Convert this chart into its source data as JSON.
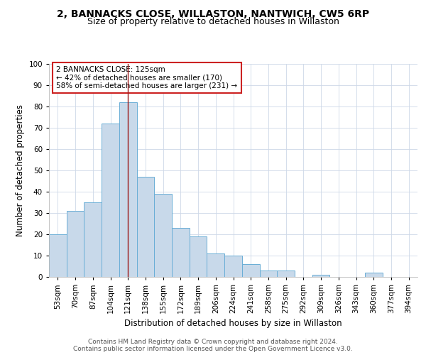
{
  "title": "2, BANNACKS CLOSE, WILLASTON, NANTWICH, CW5 6RP",
  "subtitle": "Size of property relative to detached houses in Willaston",
  "xlabel": "Distribution of detached houses by size in Willaston",
  "ylabel": "Number of detached properties",
  "bar_labels": [
    "53sqm",
    "70sqm",
    "87sqm",
    "104sqm",
    "121sqm",
    "138sqm",
    "155sqm",
    "172sqm",
    "189sqm",
    "206sqm",
    "224sqm",
    "241sqm",
    "258sqm",
    "275sqm",
    "292sqm",
    "309sqm",
    "326sqm",
    "343sqm",
    "360sqm",
    "377sqm",
    "394sqm"
  ],
  "bar_values": [
    20,
    31,
    35,
    72,
    82,
    47,
    39,
    23,
    19,
    11,
    10,
    6,
    3,
    3,
    0,
    1,
    0,
    0,
    2,
    0,
    0
  ],
  "bar_color": "#c8d9ea",
  "bar_edge_color": "#6aaed6",
  "vline_x_index": 4,
  "vline_color": "#9b1b1b",
  "annotation_text": "2 BANNACKS CLOSE: 125sqm\n← 42% of detached houses are smaller (170)\n58% of semi-detached houses are larger (231) →",
  "annotation_box_color": "#ffffff",
  "annotation_box_edge": "#cc2222",
  "ylim": [
    0,
    100
  ],
  "yticks": [
    0,
    10,
    20,
    30,
    40,
    50,
    60,
    70,
    80,
    90,
    100
  ],
  "title_fontsize": 10,
  "subtitle_fontsize": 9,
  "xlabel_fontsize": 8.5,
  "ylabel_fontsize": 8.5,
  "tick_fontsize": 7.5,
  "annotation_fontsize": 7.5,
  "footer_line1": "Contains HM Land Registry data © Crown copyright and database right 2024.",
  "footer_line2": "Contains public sector information licensed under the Open Government Licence v3.0.",
  "bg_color": "#ffffff",
  "grid_color": "#cdd8e8"
}
